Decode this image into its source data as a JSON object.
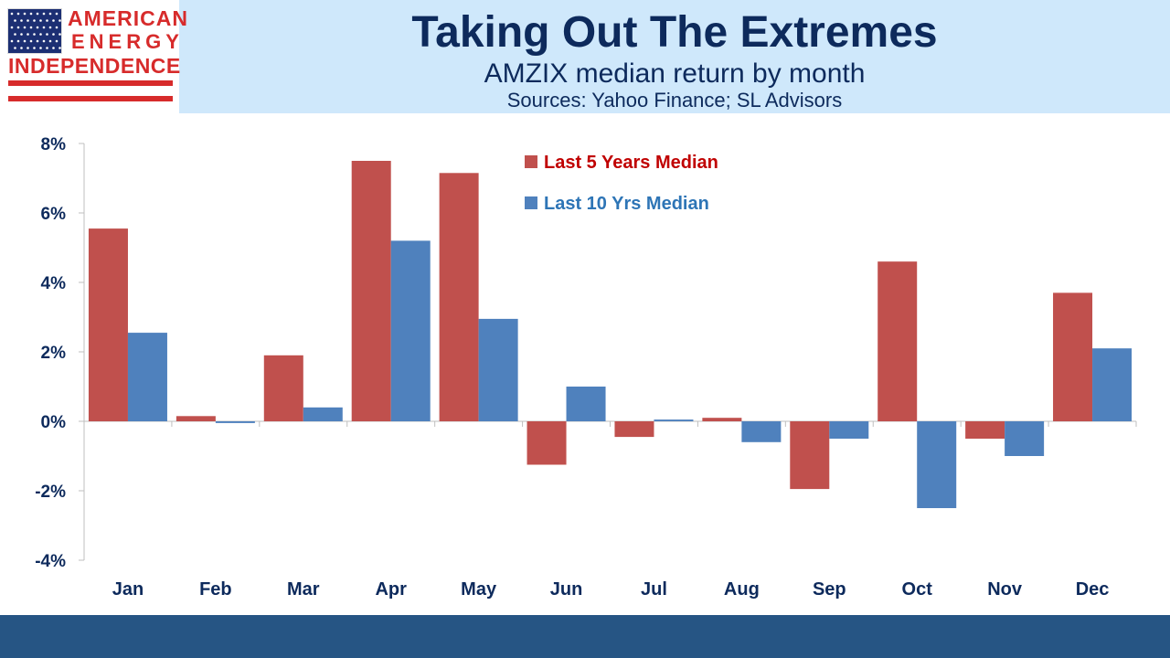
{
  "logo": {
    "line1": "AMERICAN",
    "line2": "ENERGY",
    "line3": "INDEPENDENCE",
    "flag_icon": "us-flag-icon"
  },
  "header": {
    "title": "Taking Out The Extremes",
    "subtitle": "AMZIX median return by month",
    "source": "Sources: Yahoo Finance; SL Advisors"
  },
  "colors": {
    "header_band": "#cfe8fb",
    "title_text": "#0d2a5c",
    "logo_red": "#d72b2b",
    "logo_blue": "#1c2f73",
    "footer_band": "#265584"
  },
  "chart_data": {
    "type": "bar",
    "categories": [
      "Jan",
      "Feb",
      "Mar",
      "Apr",
      "May",
      "Jun",
      "Jul",
      "Aug",
      "Sep",
      "Oct",
      "Nov",
      "Dec"
    ],
    "series": [
      {
        "name": "Last 5 Years Median",
        "color": "#c0504d",
        "label_color": "#c00000",
        "values": [
          5.55,
          0.15,
          1.9,
          7.5,
          7.15,
          -1.25,
          -0.45,
          0.1,
          -1.95,
          4.6,
          -0.5,
          3.7
        ]
      },
      {
        "name": "Last 10 Yrs Median",
        "color": "#4f81bd",
        "label_color": "#2e75b6",
        "values": [
          2.55,
          -0.05,
          0.4,
          5.2,
          2.95,
          1.0,
          0.05,
          -0.6,
          -0.5,
          -2.5,
          -1.0,
          2.1
        ]
      }
    ],
    "yticks": [
      "8%",
      "6%",
      "4%",
      "2%",
      "0%",
      "-2%",
      "-4%"
    ],
    "ylim": [
      -4,
      8
    ],
    "legend_position": "top-center",
    "grid": false
  }
}
